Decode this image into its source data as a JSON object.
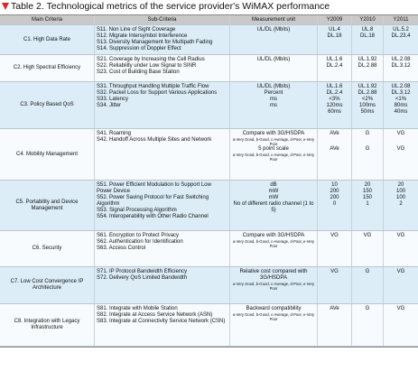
{
  "title": "Table 2. Technological metrics of the service provider's WiMAX performance",
  "table": {
    "header": [
      "Main Criteria",
      "Sub-Criteria",
      "Measurement unit",
      "Y2009",
      "Y2010",
      "Y2011"
    ],
    "rows": [
      {
        "criteria": "C1. High Data Rate",
        "sub_criteria": [
          "S11. Non Line of Sight Coverage",
          "S12. Migrate Intersymbol Interference",
          "S13. Diversity Management for Multipath Fading",
          "S14. Suppression of Doppler Effect"
        ],
        "units": [
          "UL/DL (Mbits)"
        ],
        "values": [
          [
            "UL.4",
            "DL.18"
          ],
          [
            "UL.8",
            "DL.18"
          ],
          [
            "UL.5.2",
            "DL.23.4"
          ]
        ]
      },
      {
        "criteria": "C2. High Spectral Efficiency",
        "sub_criteria": [
          "S21. Coverage by Increasing the Cell Radius",
          "S22. Reliability under Low Signal to SINR",
          "S23. Cost of Building Base Station"
        ],
        "units": [
          "UL/DL (Mbits)"
        ],
        "values": [
          [
            "UL.1.6",
            "DL.2.4"
          ],
          [
            "UL.1.92",
            "DL.2.88"
          ],
          [
            "UL.2.08",
            "DL.3.12"
          ]
        ]
      },
      {
        "criteria": "C3. Policy Based QoS",
        "sub_criteria": [
          "S31. Throughput Handling Multiple Traffic Flow",
          "S32. Packet Loss for Support Various Applications",
          "S33. Latency",
          "S34. Jitter"
        ],
        "units": [
          "UL/DL (Mbits)",
          "Percent",
          "ms",
          "ms"
        ],
        "values": [
          [
            "UL.1.6",
            "DL.2.4",
            "<3%",
            "120ms",
            "60ms"
          ],
          [
            "UL.1.92",
            "DL.2.88",
            "<2%",
            "100ms",
            "50ms"
          ],
          [
            "UL.2.08",
            "DL.3.12",
            "<1%",
            "80ms",
            "40ms"
          ]
        ]
      },
      {
        "criteria": "C4. Mobility Management",
        "sub_criteria": [
          "S41. Roaming",
          "S42. Handoff Across Multiple Sites and Network"
        ],
        "units": [
          "Compare with 3G/HSDPA",
          "a-Very Good, b-Good, c-Average, d-Poor, e-Very Poor",
          "5 point scale",
          "a-Very Good, b-Good, c-Average, d-Poor, e-Very Poor"
        ],
        "values": [
          [
            "AVe",
            "AVe"
          ],
          [
            "G",
            "G"
          ],
          [
            "VG",
            "VG"
          ]
        ]
      },
      {
        "criteria": "C5. Portability and Device Management",
        "sub_criteria": [
          "S51. Power Efficient Modulation to Support Low Power Device",
          "S52. Power Saving Protocol for Fast Switching Algorithm",
          "S53. Signal Processing Algorithm",
          "S54. Interoperability with Other Radio Channel"
        ],
        "units": [
          "dB",
          "mW",
          "mW",
          "No of different radio channel (1 to 5)"
        ],
        "values": [
          [
            "10",
            "200",
            "200",
            "0"
          ],
          [
            "20",
            "150",
            "150",
            "1"
          ],
          [
            "20",
            "100",
            "100",
            "2"
          ]
        ]
      },
      {
        "criteria": "C6. Security",
        "sub_criteria": [
          "S61. Encryption to Protect Privacy",
          "S62. Authentication for Identification",
          "S63. Access Control"
        ],
        "units": [
          "Compare with 3G/HSDPA",
          "a-Very Good, b-Good, c-Average, d-Poor, e-Very Poor"
        ],
        "values": [
          [
            "VG"
          ],
          [
            "VG"
          ],
          [
            "VG"
          ]
        ]
      },
      {
        "criteria": "C7. Low Cost Convergence IP Architecture",
        "sub_criteria": [
          "S71. IP Protocol Bandwidth Efficiency",
          "S72. Delivery QoS Limited Bandwidth"
        ],
        "units": [
          "Relative cost compared with 3G/HSDPA",
          "a-Very Good, b-Good, c-Average, d-Poor, e-Very Poor"
        ],
        "values": [
          [
            "VG"
          ],
          [
            "G"
          ],
          [
            "VG"
          ]
        ]
      },
      {
        "criteria": "C8. Integration with Legacy Infrastructure",
        "sub_criteria": [
          "S81. Integrate with Mobile Station",
          "S82. Integrate at Access Service Network (ASN)",
          "S83. Integrate at Connectivity Service Network (CSN)"
        ],
        "units": [
          "Backward compatibility",
          "a-Very Good, b-Good, c-Average, d-Poor, e-Very Poor"
        ],
        "values": [
          [
            "AVe"
          ],
          [
            "G"
          ],
          [
            "VG"
          ]
        ]
      }
    ]
  }
}
